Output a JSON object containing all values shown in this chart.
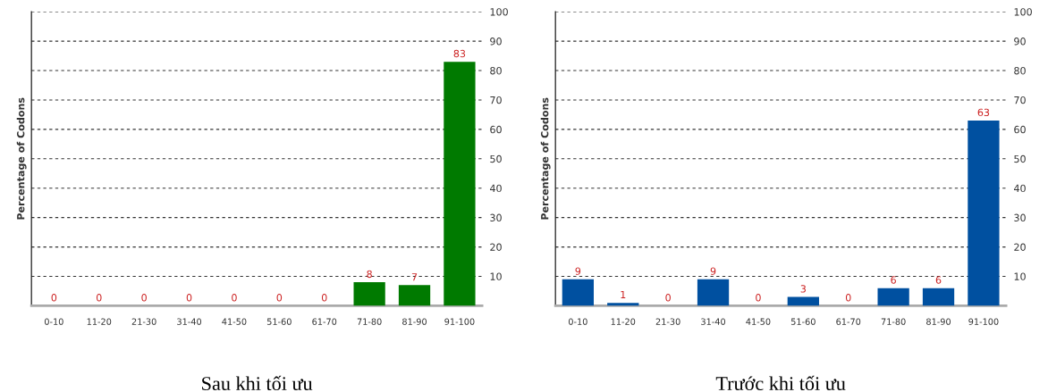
{
  "chart_data": [
    {
      "type": "bar",
      "title": "Sau khi tối ưu",
      "ylabel": "Percentage of Codons",
      "categories": [
        "0-10",
        "11-20",
        "21-30",
        "31-40",
        "41-50",
        "51-60",
        "61-70",
        "71-80",
        "81-90",
        "91-100"
      ],
      "values": [
        0,
        0,
        0,
        0,
        0,
        0,
        0,
        8,
        7,
        83
      ],
      "color": "#007a00",
      "ylim": [
        0,
        100
      ],
      "yticks": [
        10,
        20,
        30,
        40,
        50,
        60,
        70,
        80,
        90,
        100
      ],
      "grid": "y",
      "data_labels": true
    },
    {
      "type": "bar",
      "title": "Trước khi tối ưu",
      "ylabel": "Percentage of Codons",
      "categories": [
        "0-10",
        "11-20",
        "21-30",
        "31-40",
        "41-50",
        "51-60",
        "61-70",
        "71-80",
        "81-90",
        "91-100"
      ],
      "values": [
        9,
        1,
        0,
        9,
        0,
        3,
        0,
        6,
        6,
        63
      ],
      "color": "#0050a0",
      "ylim": [
        0,
        100
      ],
      "yticks": [
        10,
        20,
        30,
        40,
        50,
        60,
        70,
        80,
        90,
        100
      ],
      "grid": "y",
      "data_labels": true
    }
  ]
}
